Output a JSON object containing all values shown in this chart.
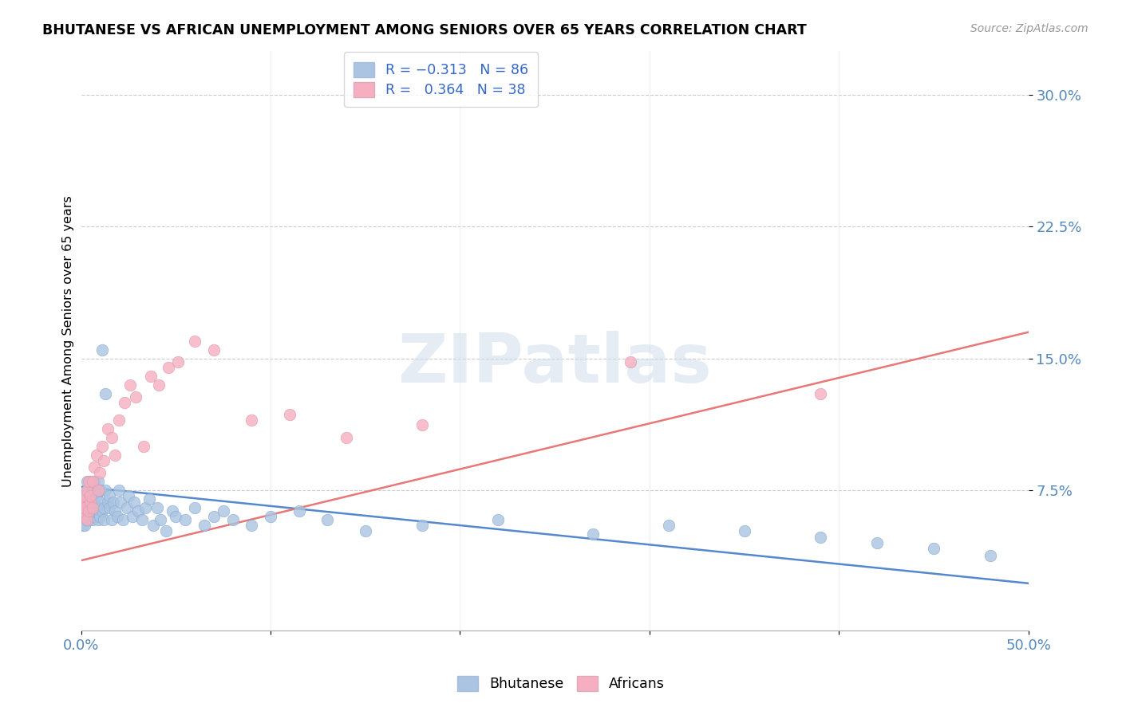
{
  "title": "BHUTANESE VS AFRICAN UNEMPLOYMENT AMONG SENIORS OVER 65 YEARS CORRELATION CHART",
  "source": "Source: ZipAtlas.com",
  "ylabel": "Unemployment Among Seniors over 65 years",
  "yticks": [
    "7.5%",
    "15.0%",
    "22.5%",
    "30.0%"
  ],
  "ytick_vals": [
    0.075,
    0.15,
    0.225,
    0.3
  ],
  "xlim": [
    0.0,
    0.5
  ],
  "ylim": [
    -0.005,
    0.325
  ],
  "legend_r_bhutanese": "R = -0.313",
  "legend_n_bhutanese": "N = 86",
  "legend_r_africans": "R =  0.364",
  "legend_n_africans": "N = 38",
  "color_bhutanese": "#aac4e2",
  "color_africans": "#f5afc0",
  "line_color_bhutanese": "#5588cc",
  "line_color_africans": "#e87878",
  "bhu_line_x0": 0.0,
  "bhu_line_y0": 0.077,
  "bhu_line_x1": 0.5,
  "bhu_line_y1": 0.022,
  "afr_line_x0": 0.0,
  "afr_line_y0": 0.035,
  "afr_line_x1": 0.5,
  "afr_line_y1": 0.165,
  "bhutanese_x": [
    0.001,
    0.001,
    0.001,
    0.002,
    0.002,
    0.002,
    0.002,
    0.002,
    0.003,
    0.003,
    0.003,
    0.003,
    0.003,
    0.004,
    0.004,
    0.004,
    0.004,
    0.004,
    0.005,
    0.005,
    0.005,
    0.005,
    0.006,
    0.006,
    0.006,
    0.007,
    0.007,
    0.007,
    0.008,
    0.008,
    0.009,
    0.009,
    0.009,
    0.01,
    0.01,
    0.01,
    0.011,
    0.011,
    0.012,
    0.012,
    0.013,
    0.013,
    0.014,
    0.015,
    0.015,
    0.016,
    0.017,
    0.018,
    0.019,
    0.02,
    0.021,
    0.022,
    0.024,
    0.025,
    0.027,
    0.028,
    0.03,
    0.032,
    0.034,
    0.036,
    0.038,
    0.04,
    0.042,
    0.045,
    0.048,
    0.05,
    0.055,
    0.06,
    0.065,
    0.07,
    0.075,
    0.08,
    0.09,
    0.1,
    0.115,
    0.13,
    0.15,
    0.18,
    0.22,
    0.27,
    0.31,
    0.35,
    0.39,
    0.42,
    0.45,
    0.48
  ],
  "bhutanese_y": [
    0.063,
    0.07,
    0.055,
    0.06,
    0.068,
    0.055,
    0.072,
    0.065,
    0.058,
    0.068,
    0.075,
    0.06,
    0.08,
    0.063,
    0.07,
    0.058,
    0.075,
    0.065,
    0.072,
    0.06,
    0.08,
    0.068,
    0.065,
    0.058,
    0.075,
    0.068,
    0.06,
    0.08,
    0.072,
    0.065,
    0.058,
    0.075,
    0.08,
    0.068,
    0.06,
    0.075,
    0.063,
    0.155,
    0.065,
    0.058,
    0.075,
    0.13,
    0.068,
    0.065,
    0.072,
    0.058,
    0.068,
    0.063,
    0.06,
    0.075,
    0.068,
    0.058,
    0.065,
    0.072,
    0.06,
    0.068,
    0.063,
    0.058,
    0.065,
    0.07,
    0.055,
    0.065,
    0.058,
    0.052,
    0.063,
    0.06,
    0.058,
    0.065,
    0.055,
    0.06,
    0.063,
    0.058,
    0.055,
    0.06,
    0.063,
    0.058,
    0.052,
    0.055,
    0.058,
    0.05,
    0.055,
    0.052,
    0.048,
    0.045,
    0.042,
    0.038
  ],
  "africans_x": [
    0.001,
    0.001,
    0.002,
    0.002,
    0.003,
    0.003,
    0.004,
    0.004,
    0.005,
    0.005,
    0.006,
    0.006,
    0.007,
    0.008,
    0.009,
    0.01,
    0.011,
    0.012,
    0.014,
    0.016,
    0.018,
    0.02,
    0.023,
    0.026,
    0.029,
    0.033,
    0.037,
    0.041,
    0.046,
    0.051,
    0.06,
    0.07,
    0.09,
    0.11,
    0.14,
    0.18,
    0.29,
    0.39
  ],
  "africans_y": [
    0.06,
    0.068,
    0.065,
    0.072,
    0.058,
    0.075,
    0.063,
    0.08,
    0.068,
    0.072,
    0.08,
    0.065,
    0.088,
    0.095,
    0.075,
    0.085,
    0.1,
    0.092,
    0.11,
    0.105,
    0.095,
    0.115,
    0.125,
    0.135,
    0.128,
    0.1,
    0.14,
    0.135,
    0.145,
    0.148,
    0.16,
    0.155,
    0.115,
    0.118,
    0.105,
    0.112,
    0.148,
    0.13
  ]
}
